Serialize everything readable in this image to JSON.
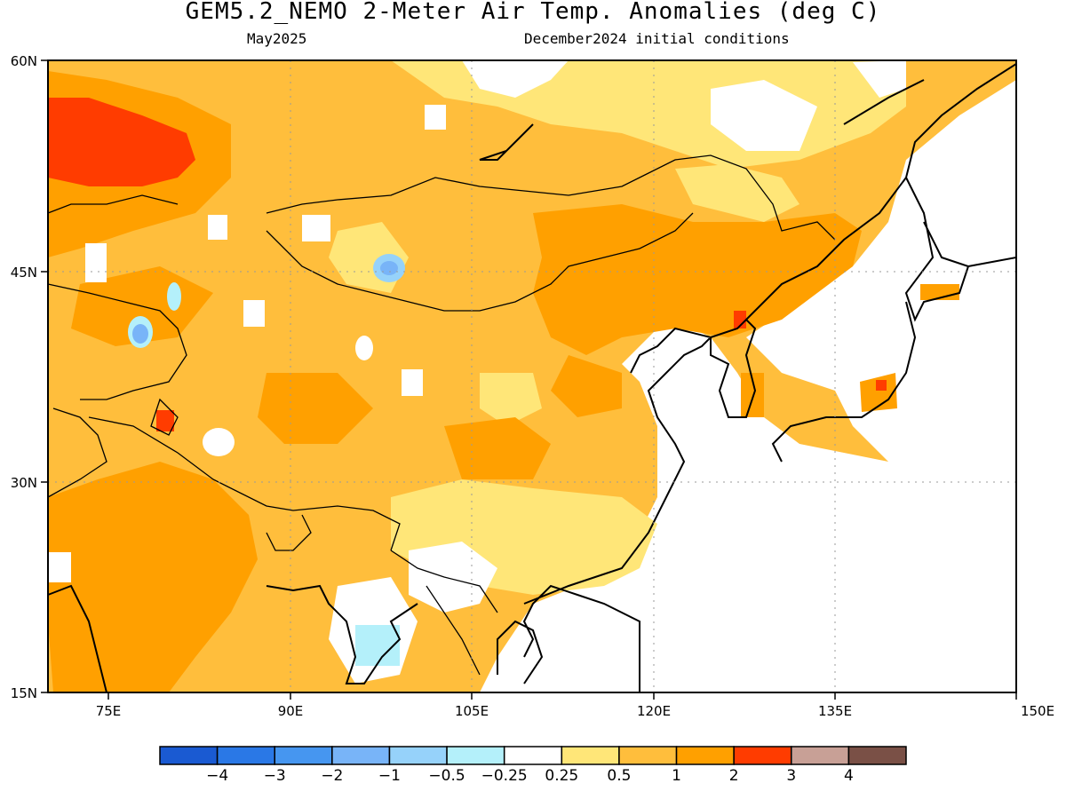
{
  "header": {
    "title": "GEM5.2_NEMO 2-Meter Air Temp. Anomalies (deg C)",
    "valid_month": "May2025",
    "initial_conditions": "December2024 initial conditions"
  },
  "map": {
    "lon_labels": [
      "75E",
      "90E",
      "105E",
      "120E",
      "135E",
      "150E"
    ],
    "lat_labels": [
      "60N",
      "45N",
      "30N",
      "15N"
    ],
    "lon_range": [
      70,
      150
    ],
    "lat_range": [
      15,
      60
    ],
    "grid": "dotted"
  },
  "colorbar": {
    "colors": [
      "#1a5ad2",
      "#2a78e6",
      "#4696f0",
      "#78b4f8",
      "#96d2fa",
      "#b4f0fa",
      "#ffffff",
      "#ffe678",
      "#ffbe3c",
      "#ffa000",
      "#ff3c00",
      "#c8a096",
      "#7a5046"
    ],
    "labels": [
      "−4",
      "−3",
      "−2",
      "−1",
      "−0.5",
      "−0.25",
      "0.25",
      "0.5",
      "1",
      "2",
      "3",
      "4"
    ]
  }
}
